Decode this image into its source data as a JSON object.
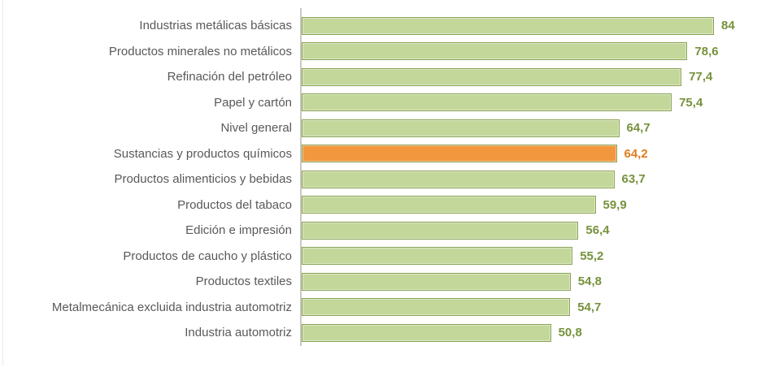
{
  "chart_data": {
    "type": "bar",
    "orientation": "horizontal",
    "title": "",
    "xlabel": "",
    "ylabel": "",
    "grid": false,
    "legend": null,
    "xlim": [
      0,
      84
    ],
    "decimal_separator": ",",
    "categories": [
      "Industrias metálicas básicas",
      "Productos minerales no metálicos",
      "Refinación del petróleo",
      "Papel y cartón",
      "Nivel general",
      "Sustancias y productos químicos",
      "Productos alimenticios y bebidas",
      "Productos del tabaco",
      "Edición e impresión",
      "Productos de caucho y plástico",
      "Productos textiles",
      "Metalmecánica excluida industria automotriz",
      "Industria automotriz"
    ],
    "values": [
      84,
      78.6,
      77.4,
      75.4,
      64.7,
      64.2,
      63.7,
      59.9,
      56.4,
      55.2,
      54.8,
      54.7,
      50.8
    ],
    "value_labels": [
      "84",
      "78,6",
      "77,4",
      "75,4",
      "64,7",
      "64,2",
      "63,7",
      "59,9",
      "56,4",
      "55,2",
      "54,8",
      "54,7",
      "50,8"
    ],
    "highlight_index": 5,
    "highlight_category": "Sustancias y productos químicos",
    "colors": {
      "bar_fill": "#C4D79B",
      "bar_border": "#8AA254",
      "highlight_fill": "#F2973D",
      "value_text": "#76923C",
      "highlight_value_text": "#E07D1F",
      "category_text": "#595959",
      "axis_line": "#C9C9C4"
    }
  }
}
